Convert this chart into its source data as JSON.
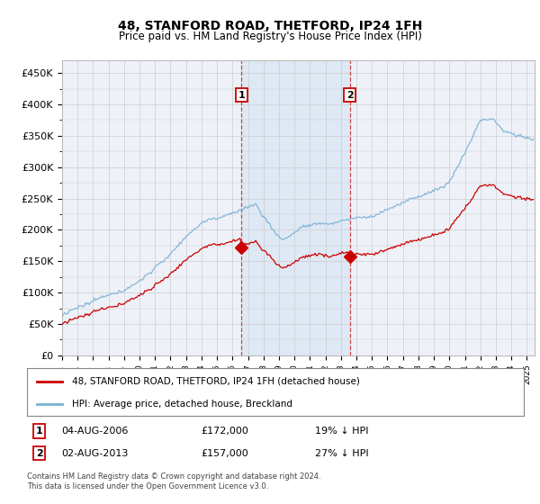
{
  "title": "48, STANFORD ROAD, THETFORD, IP24 1FH",
  "subtitle": "Price paid vs. HM Land Registry's House Price Index (HPI)",
  "ylim": [
    0,
    470000
  ],
  "yticks": [
    0,
    50000,
    100000,
    150000,
    200000,
    250000,
    300000,
    350000,
    400000,
    450000
  ],
  "yticklabels": [
    "£0",
    "£50K",
    "£100K",
    "£150K",
    "£200K",
    "£250K",
    "£300K",
    "£350K",
    "£400K",
    "£450K"
  ],
  "legend_entries": [
    "48, STANFORD ROAD, THETFORD, IP24 1FH (detached house)",
    "HPI: Average price, detached house, Breckland"
  ],
  "legend_colors": [
    "#cc0000",
    "#7ab0d4"
  ],
  "marker1_date": 2006.58,
  "marker1_value": 172000,
  "marker2_date": 2013.58,
  "marker2_value": 157000,
  "footer": "Contains HM Land Registry data © Crown copyright and database right 2024.\nThis data is licensed under the Open Government Licence v3.0.",
  "bg_color": "#ffffff",
  "plot_bg_color": "#eef2f8",
  "grid_color": "#cccccc",
  "hpi_color": "#7ab0d4",
  "price_color": "#cc0000",
  "shade_color": "#dce8f5",
  "xlim_start": 1995,
  "xlim_end": 2025.5
}
